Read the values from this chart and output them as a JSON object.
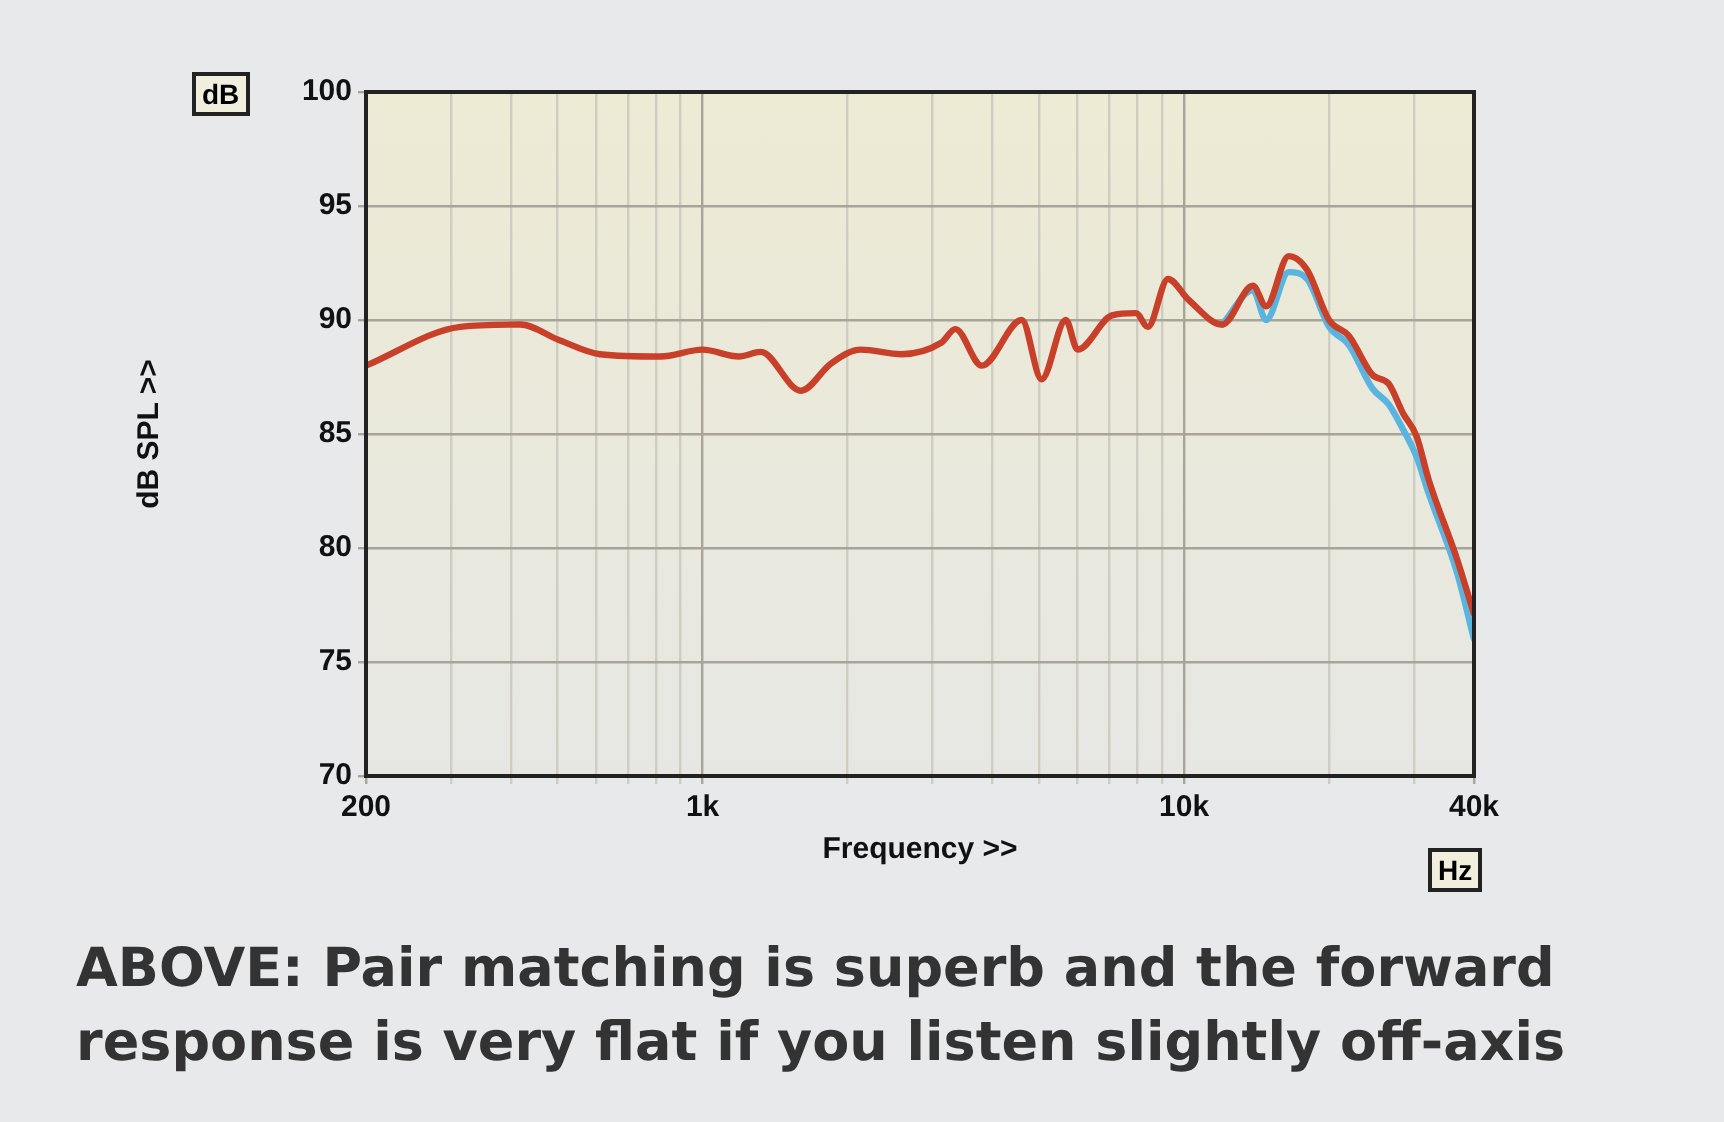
{
  "chart_data": {
    "type": "line",
    "xlabel": "Frequency >>",
    "ylabel": "dB SPL >>",
    "annotations": [
      "dB",
      "Hz",
      "ABOVE: Pair matching is superb and the forward response is very flat if you listen slightly off-axis"
    ],
    "x": [
      200,
      314,
      418,
      506,
      612,
      818,
      1000,
      1190,
      1320,
      1600,
      1850,
      2130,
      2590,
      3130,
      3350,
      3800,
      4600,
      5060,
      5680,
      6010,
      7080,
      7940,
      8410,
      9260,
      10200,
      12000,
      13900,
      14800,
      16500,
      18000,
      20000,
      22000,
      24600,
      26600,
      28500,
      30400,
      32200,
      36900,
      40000
    ],
    "series": [
      {
        "color": "#5ab4e0",
        "values": [
          null,
          null,
          null,
          null,
          null,
          null,
          null,
          null,
          null,
          null,
          null,
          null,
          null,
          null,
          null,
          null,
          null,
          null,
          null,
          null,
          null,
          null,
          null,
          null,
          null,
          89.8,
          91.3,
          90.0,
          92.1,
          91.8,
          89.7,
          88.9,
          87.0,
          86.3,
          85.2,
          84.0,
          82.4,
          78.9,
          76.0
        ]
      },
      {
        "color": "#c8402a",
        "values": [
          88.0,
          89.7,
          89.8,
          89.1,
          88.5,
          88.4,
          88.7,
          88.4,
          88.6,
          86.9,
          88.1,
          88.7,
          88.5,
          89.0,
          89.6,
          88.0,
          90.0,
          87.4,
          90.0,
          88.7,
          90.2,
          90.3,
          89.7,
          91.8,
          90.9,
          89.8,
          91.5,
          90.6,
          92.8,
          92.2,
          90.0,
          89.3,
          87.6,
          87.2,
          85.9,
          84.9,
          83.0,
          79.5,
          77.1
        ]
      }
    ],
    "log": "x",
    "xlim": [
      200,
      40000
    ],
    "xticks": [
      200,
      {
        "value": 300,
        "label": null
      },
      {
        "value": 400,
        "label": null
      },
      {
        "value": 500,
        "label": null
      },
      {
        "value": 600,
        "label": null
      },
      {
        "value": 700,
        "label": null
      },
      {
        "value": 800,
        "label": null
      },
      {
        "value": 900,
        "label": null
      },
      {
        "value": 1000,
        "label": "1k"
      },
      {
        "value": 2000,
        "label": null
      },
      {
        "value": 3000,
        "label": null
      },
      {
        "value": 4000,
        "label": null
      },
      {
        "value": 5000,
        "label": null
      },
      {
        "value": 6000,
        "label": null
      },
      {
        "value": 7000,
        "label": null
      },
      {
        "value": 8000,
        "label": null
      },
      {
        "value": 9000,
        "label": null
      },
      {
        "value": 10000,
        "label": "10k"
      },
      {
        "value": 20000,
        "label": null
      },
      {
        "value": 30000,
        "label": null
      },
      {
        "value": 40000,
        "label": "40k"
      }
    ],
    "ylim": [
      70,
      100
    ],
    "yticks": [
      70,
      75,
      80,
      85,
      90,
      95,
      100
    ],
    "grid": true,
    "legend": false,
    "marker": "none",
    "line_style": "solid"
  }
}
